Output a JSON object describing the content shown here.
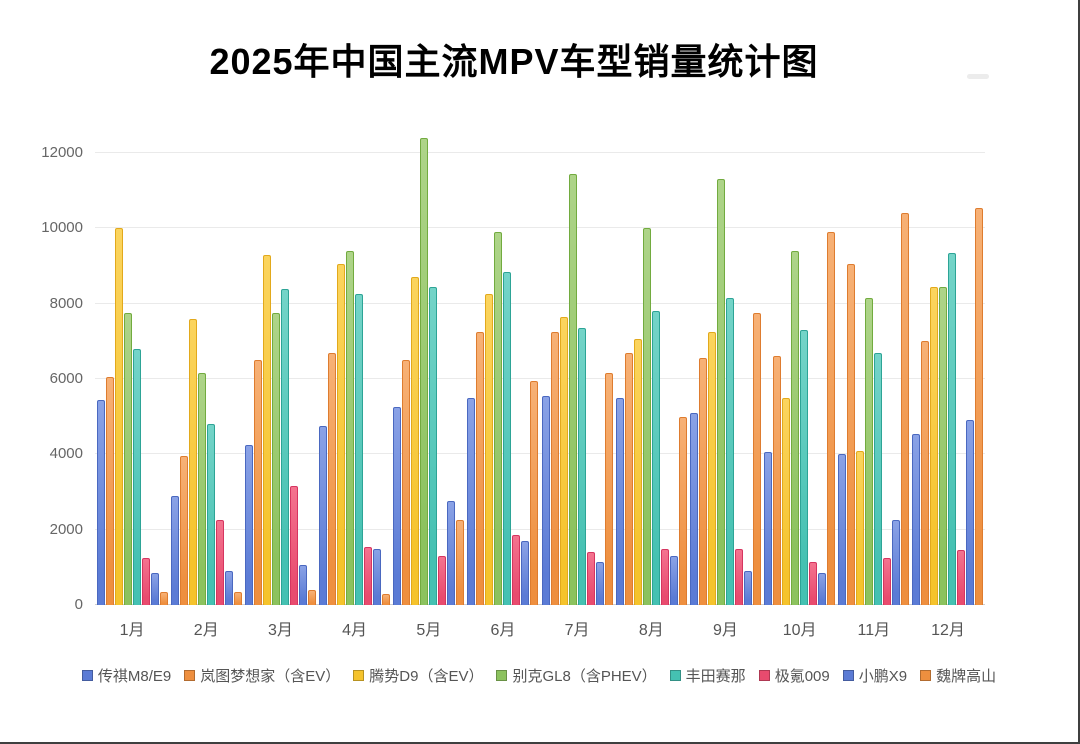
{
  "chart_data": {
    "type": "bar",
    "title": "2025年中国主流MPV车型销量统计图",
    "categories": [
      "1月",
      "2月",
      "3月",
      "4月",
      "5月",
      "6月",
      "7月",
      "8月",
      "9月",
      "10月",
      "11月",
      "12月"
    ],
    "series": [
      {
        "name": "传祺M8/E9",
        "color": "#5b7bd5",
        "color_light": "#8aa2e6",
        "color_dark": "#4a68c0",
        "values": [
          5450,
          2900,
          4250,
          4750,
          5250,
          5500,
          5550,
          5500,
          5100,
          4050,
          4000,
          4550
        ]
      },
      {
        "name": "岚图梦想家（含EV）",
        "color": "#ee8f3f",
        "color_light": "#f7b176",
        "color_dark": "#de7c2f",
        "values": [
          6050,
          3950,
          6500,
          6700,
          6500,
          7250,
          7250,
          6700,
          6550,
          6600,
          9050,
          7000
        ]
      },
      {
        "name": "腾势D9（含EV）",
        "color": "#f5c32c",
        "color_light": "#fbd45e",
        "color_dark": "#e2a91c",
        "values": [
          10000,
          7600,
          9300,
          9050,
          8700,
          8250,
          7650,
          7050,
          7250,
          5500,
          4100,
          8450
        ]
      },
      {
        "name": "别克GL8（含PHEV）",
        "color": "#8cc25e",
        "color_light": "#aed489",
        "color_dark": "#72ab3f",
        "values": [
          7750,
          6150,
          7750,
          9400,
          12400,
          9900,
          11450,
          10000,
          11300,
          9400,
          8150,
          8450
        ]
      },
      {
        "name": "丰田赛那",
        "color": "#45c1b2",
        "color_light": "#74d4c8",
        "color_dark": "#2da496",
        "values": [
          6800,
          4800,
          8400,
          8250,
          8450,
          8850,
          7350,
          7800,
          8150,
          7300,
          6700,
          9350
        ]
      },
      {
        "name": "极氪009",
        "color": "#e84b6e",
        "color_light": "#f4738f",
        "color_dark": "#d63560",
        "values": [
          1250,
          2250,
          3150,
          1550,
          1300,
          1850,
          1400,
          1500,
          1500,
          1150,
          1250,
          1450
        ]
      },
      {
        "name": "小鹏X9",
        "color": "#5b7bd5",
        "color_light": "#8aa2e6",
        "color_dark": "#4a68c0",
        "values": [
          850,
          900,
          1050,
          1500,
          2750,
          1700,
          1150,
          1300,
          900,
          850,
          2250,
          4900
        ]
      },
      {
        "name": "魏牌高山",
        "color": "#ee8f3f",
        "color_light": "#f7b176",
        "color_dark": "#de7c2f",
        "values": [
          350,
          350,
          400,
          300,
          2250,
          5950,
          6150,
          5000,
          7750,
          9900,
          10400,
          10550
        ]
      }
    ],
    "y_ticks": [
      0,
      2000,
      4000,
      6000,
      8000,
      10000,
      12000
    ],
    "ylim": [
      0,
      12000
    ],
    "grid": true,
    "legend_position": "bottom"
  }
}
